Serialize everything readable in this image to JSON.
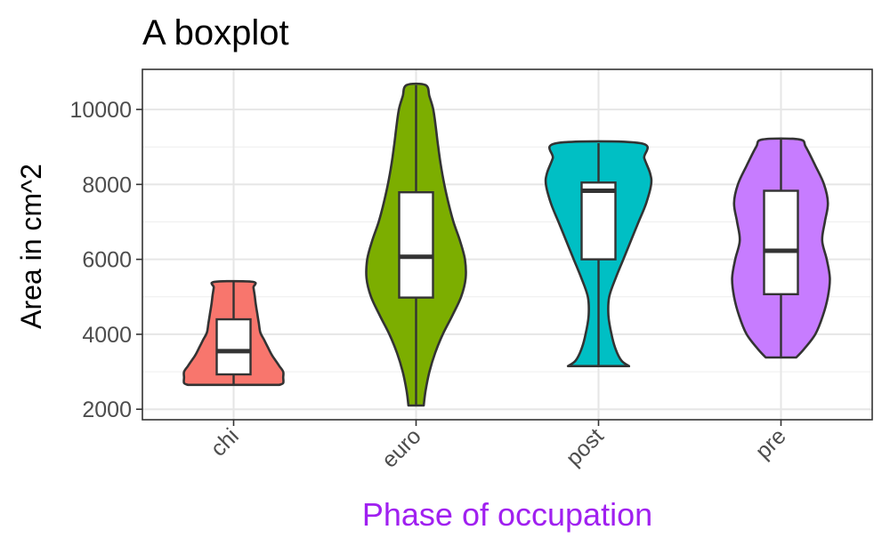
{
  "chart_data": {
    "type": "violin",
    "title": "A boxplot",
    "xlabel": "Phase of occupation",
    "ylabel": "Area in cm^2",
    "xlabel_color": "#a020f0",
    "categories": [
      "chi",
      "euro",
      "post",
      "pre"
    ],
    "colors": [
      "#f8766d",
      "#7cae00",
      "#00bfc4",
      "#c77cff"
    ],
    "yticks": [
      2000,
      4000,
      6000,
      8000,
      10000
    ],
    "ytick_labels": [
      "2000",
      "4000",
      "6000",
      "8000",
      "10000"
    ],
    "ylim": [
      1720,
      11070
    ],
    "grid": true,
    "violins": [
      {
        "category": "chi",
        "profile": [
          [
            2650,
            0.12
          ],
          [
            2700,
            0.13
          ],
          [
            2850,
            0.13
          ],
          [
            3000,
            0.13
          ],
          [
            3150,
            0.12
          ],
          [
            3300,
            0.11
          ],
          [
            3450,
            0.1
          ],
          [
            3650,
            0.09
          ],
          [
            3850,
            0.08
          ],
          [
            4050,
            0.07
          ],
          [
            4300,
            0.066
          ],
          [
            4550,
            0.062
          ],
          [
            4800,
            0.058
          ],
          [
            5050,
            0.055
          ],
          [
            5250,
            0.052
          ],
          [
            5400,
            0.05
          ]
        ],
        "box": {
          "q1": 2930,
          "median": 3550,
          "q3": 4400
        },
        "whisker": [
          2650,
          5400
        ]
      },
      {
        "category": "euro",
        "profile": [
          [
            2100,
            0.02
          ],
          [
            2500,
            0.025
          ],
          [
            3000,
            0.035
          ],
          [
            3500,
            0.05
          ],
          [
            4000,
            0.07
          ],
          [
            4500,
            0.095
          ],
          [
            5000,
            0.118
          ],
          [
            5500,
            0.13
          ],
          [
            6000,
            0.128
          ],
          [
            6500,
            0.115
          ],
          [
            7000,
            0.098
          ],
          [
            7500,
            0.085
          ],
          [
            8000,
            0.074
          ],
          [
            8500,
            0.065
          ],
          [
            9000,
            0.058
          ],
          [
            9500,
            0.052
          ],
          [
            10000,
            0.045
          ],
          [
            10350,
            0.035
          ],
          [
            10650,
            0.025
          ]
        ],
        "box": {
          "q1": 4980,
          "median": 6070,
          "q3": 7790
        },
        "whisker": [
          2100,
          10650
        ]
      },
      {
        "category": "post",
        "profile": [
          [
            3150,
            0.08
          ],
          [
            3300,
            0.06
          ],
          [
            3600,
            0.045
          ],
          [
            4000,
            0.034
          ],
          [
            4500,
            0.026
          ],
          [
            5000,
            0.028
          ],
          [
            5500,
            0.045
          ],
          [
            6000,
            0.065
          ],
          [
            6500,
            0.085
          ],
          [
            7000,
            0.105
          ],
          [
            7500,
            0.125
          ],
          [
            8000,
            0.138
          ],
          [
            8300,
            0.135
          ],
          [
            8700,
            0.12
          ],
          [
            9100,
            0.11
          ]
        ],
        "box": {
          "q1": 6000,
          "median": 7830,
          "q3": 8050
        },
        "whisker": [
          3150,
          9100
        ]
      },
      {
        "category": "pre",
        "profile": [
          [
            3380,
            0.04
          ],
          [
            3600,
            0.06
          ],
          [
            4000,
            0.09
          ],
          [
            4500,
            0.11
          ],
          [
            5000,
            0.123
          ],
          [
            5500,
            0.128
          ],
          [
            6000,
            0.12
          ],
          [
            6500,
            0.108
          ],
          [
            7000,
            0.115
          ],
          [
            7500,
            0.123
          ],
          [
            8000,
            0.113
          ],
          [
            8500,
            0.09
          ],
          [
            9000,
            0.065
          ],
          [
            9200,
            0.048
          ]
        ],
        "box": {
          "q1": 5070,
          "median": 6230,
          "q3": 7830
        },
        "whisker": [
          3380,
          9200
        ]
      }
    ]
  }
}
